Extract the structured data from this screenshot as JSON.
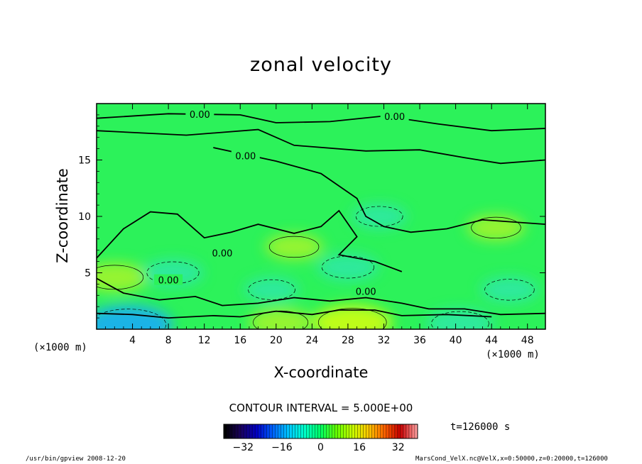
{
  "chart_data": {
    "type": "heatmap",
    "title": "zonal velocity",
    "xlabel": "X-coordinate",
    "ylabel": "Z-coordinate",
    "x_unit_label": "(×1000 m)",
    "xlim": [
      0,
      50
    ],
    "ylim": [
      0,
      20
    ],
    "x_ticks": [
      4,
      8,
      12,
      16,
      20,
      24,
      28,
      32,
      36,
      40,
      44,
      48
    ],
    "y_ticks": [
      5,
      10,
      15
    ],
    "contour_labels": [
      {
        "text": "0.00",
        "x": 11.5,
        "z": 19.0
      },
      {
        "text": "0.00",
        "x": 33.2,
        "z": 18.8
      },
      {
        "text": "0.00",
        "x": 16.6,
        "z": 15.3
      },
      {
        "text": "0.00",
        "x": 14.0,
        "z": 6.7
      },
      {
        "text": "0.00",
        "x": 8.0,
        "z": 4.3
      },
      {
        "text": "0.00",
        "x": 30.0,
        "z": 3.3
      }
    ],
    "field_features": [
      {
        "kind": "positive",
        "x": 44.5,
        "z": 9.0,
        "value": 5
      },
      {
        "kind": "positive",
        "x": 2.0,
        "z": 4.6,
        "value": 8
      },
      {
        "kind": "positive",
        "x": 22.0,
        "z": 7.3,
        "value": 5
      },
      {
        "kind": "positive",
        "x": 28.5,
        "z": 0.6,
        "value": 12
      },
      {
        "kind": "positive",
        "x": 20.5,
        "z": 0.6,
        "value": 7
      },
      {
        "kind": "negative",
        "x": 8.5,
        "z": 5.0,
        "value": -6
      },
      {
        "kind": "negative",
        "x": 19.5,
        "z": 3.5,
        "value": -4
      },
      {
        "kind": "negative",
        "x": 28.0,
        "z": 5.5,
        "value": -6
      },
      {
        "kind": "negative",
        "x": 31.5,
        "z": 10.0,
        "value": -4
      },
      {
        "kind": "negative",
        "x": 46.0,
        "z": 3.5,
        "value": -5
      },
      {
        "kind": "negative",
        "x": 3.5,
        "z": 0.4,
        "value": -15
      },
      {
        "kind": "negative",
        "x": 40.5,
        "z": 0.5,
        "value": -8
      }
    ],
    "colorbar": {
      "min": -40,
      "max": 40,
      "ticks": [
        -32,
        -16,
        0,
        16,
        32
      ],
      "tick_labels": [
        "−32",
        "−16",
        "0",
        "16",
        "32"
      ],
      "colors": [
        "#000000",
        "#1a0060",
        "#0000c8",
        "#0064ff",
        "#00c8ff",
        "#00ffc8",
        "#00ff64",
        "#64ff00",
        "#c8ff00",
        "#ffc800",
        "#ff6400",
        "#c80000",
        "#ff9999"
      ]
    },
    "grid": false,
    "legend": "none"
  },
  "contour_interval": "CONTOUR INTERVAL = 5.000E+00",
  "time_label": "t=126000 s",
  "footer_left": "/usr/bin/gpview   2008-12-20",
  "footer_right": "MarsCond_VelX.nc@VelX,x=0:50000,z=0:20000,t=126000"
}
